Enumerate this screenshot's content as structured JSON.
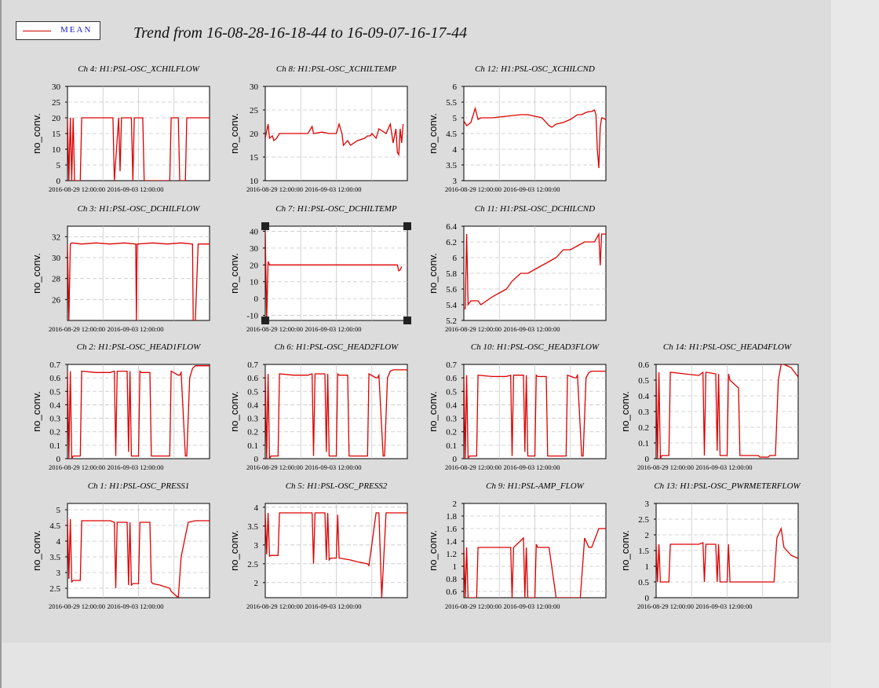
{
  "page": {
    "title": "Trend from 16-08-28-16-18-44 to 16-09-07-16-17-44",
    "legend_label": "MEAN",
    "legend_color": "#d00000",
    "trace_color": "#dd0000"
  },
  "chart_data": [
    {
      "type": "line",
      "title": "Ch 4: H1:PSL-OSC_XCHILFLOW",
      "ylabel": "no_conv.",
      "ylim": [
        0,
        30
      ],
      "yticks": [
        0,
        5,
        10,
        15,
        20,
        25,
        30
      ],
      "xticks": [
        "2016-08-29 12:00:00",
        "2016-09-03 12:00:00"
      ],
      "x": [
        0,
        0.01,
        0.02,
        0.03,
        0.04,
        0.05,
        0.09,
        0.1,
        0.32,
        0.33,
        0.36,
        0.37,
        0.38,
        0.45,
        0.46,
        0.47,
        0.53,
        0.54,
        0.72,
        0.73,
        0.78,
        0.79,
        0.83,
        0.84,
        1
      ],
      "y": [
        20,
        0,
        20,
        0,
        20,
        0,
        0,
        20,
        20,
        0,
        20,
        3,
        20,
        20,
        0,
        20,
        20,
        0,
        0,
        20,
        20,
        0,
        0,
        20,
        20
      ]
    },
    {
      "type": "line",
      "title": "Ch 8: H1:PSL-OSC_XCHILTEMP",
      "ylabel": "no_conv.",
      "ylim": [
        10,
        30
      ],
      "yticks": [
        10,
        15,
        20,
        25,
        30
      ],
      "xticks": [
        "2016-08-29 12:00:00",
        "2016-09-03 12:00:00"
      ],
      "x": [
        0,
        0.02,
        0.03,
        0.05,
        0.06,
        0.08,
        0.1,
        0.2,
        0.3,
        0.33,
        0.34,
        0.4,
        0.45,
        0.5,
        0.52,
        0.54,
        0.55,
        0.58,
        0.6,
        0.65,
        0.7,
        0.72,
        0.74,
        0.75,
        0.78,
        0.8,
        0.85,
        0.88,
        0.9,
        0.92,
        0.93,
        0.94,
        0.95,
        0.96,
        0.97
      ],
      "y": [
        19,
        22,
        19,
        19.5,
        18.5,
        19,
        20,
        20,
        20,
        21.5,
        20,
        20.3,
        20,
        20,
        22,
        20,
        17.5,
        18.5,
        17.5,
        18.5,
        19,
        19.5,
        19.5,
        20,
        19,
        21,
        20,
        22,
        18,
        21,
        16,
        15.5,
        21,
        18,
        22
      ]
    },
    {
      "type": "line",
      "title": "Ch 12: H1:PSL-OSC_XCHILCND",
      "ylabel": "no_conv.",
      "ylim": [
        3,
        6
      ],
      "yticks": [
        3,
        3.5,
        4,
        4.5,
        5,
        5.5,
        6
      ],
      "xticks": [
        "2016-08-29 12:00:00",
        "2016-09-03 12:00:00"
      ],
      "x": [
        0,
        0.02,
        0.05,
        0.08,
        0.1,
        0.12,
        0.15,
        0.2,
        0.3,
        0.4,
        0.45,
        0.5,
        0.55,
        0.6,
        0.62,
        0.65,
        0.7,
        0.75,
        0.8,
        0.83,
        0.85,
        0.88,
        0.9,
        0.92,
        0.93,
        0.94,
        0.95,
        0.96,
        0.97,
        1
      ],
      "y": [
        4.9,
        4.75,
        4.85,
        5.3,
        4.95,
        5.0,
        5.0,
        5.0,
        5.05,
        5.1,
        5.1,
        5.05,
        5.0,
        4.75,
        4.7,
        4.8,
        4.85,
        4.95,
        5.1,
        5.1,
        5.15,
        5.2,
        5.2,
        5.25,
        5.1,
        4.0,
        3.4,
        4.7,
        5.0,
        4.95
      ]
    },
    {
      "type": "line",
      "title": "Ch 3: H1:PSL-OSC_DCHILFLOW",
      "ylabel": "no_conv.",
      "ylim": [
        24,
        33
      ],
      "yticks": [
        26,
        28,
        30,
        32
      ],
      "xticks": [
        "2016-08-29 12:00:00",
        "2016-09-03 12:00:00"
      ],
      "x": [
        0,
        0.01,
        0.02,
        0.03,
        0.1,
        0.2,
        0.3,
        0.4,
        0.48,
        0.485,
        0.49,
        0.6,
        0.7,
        0.8,
        0.88,
        0.885,
        0.9,
        0.92,
        0.93,
        1
      ],
      "y": [
        31.3,
        24,
        31.3,
        31.4,
        31.3,
        31.4,
        31.3,
        31.4,
        31.3,
        24,
        31.3,
        31.4,
        31.3,
        31.4,
        31.3,
        24,
        24,
        31.3,
        31.3,
        31.3
      ]
    },
    {
      "type": "line",
      "title": "Ch 7: H1:PSL-OSC_DCHILTEMP",
      "ylabel": "no_conv.",
      "ylim": [
        -13,
        43
      ],
      "yticks": [
        -10,
        0,
        10,
        20,
        30,
        40
      ],
      "xticks": [
        "2016-08-29 12:00:00",
        "2016-09-03 12:00:00"
      ],
      "x": [
        0,
        0.01,
        0.02,
        0.03,
        0.1,
        0.2,
        0.3,
        0.4,
        0.5,
        0.6,
        0.7,
        0.8,
        0.9,
        0.93,
        0.94,
        0.95,
        0.96
      ],
      "y": [
        40,
        -12,
        22,
        20,
        20,
        20,
        20,
        20,
        20,
        20,
        20,
        20,
        20,
        20,
        16.5,
        17,
        19
      ]
    },
    {
      "type": "line",
      "title": "Ch 11: H1:PSL-OSC_DCHILCND",
      "ylabel": "no_conv.",
      "ylim": [
        5.2,
        6.4
      ],
      "yticks": [
        5.2,
        5.4,
        5.6,
        5.8,
        6,
        6.2,
        6.4
      ],
      "xticks": [
        "2016-08-29 12:00:00",
        "2016-09-03 12:00:00"
      ],
      "x": [
        0,
        0.01,
        0.02,
        0.03,
        0.05,
        0.1,
        0.12,
        0.2,
        0.25,
        0.3,
        0.34,
        0.4,
        0.45,
        0.5,
        0.55,
        0.6,
        0.65,
        0.7,
        0.75,
        0.8,
        0.85,
        0.88,
        0.9,
        0.92,
        0.95,
        0.96,
        0.97,
        1
      ],
      "y": [
        5.35,
        5.35,
        6.3,
        5.4,
        5.45,
        5.45,
        5.4,
        5.5,
        5.55,
        5.6,
        5.7,
        5.8,
        5.8,
        5.85,
        5.9,
        5.95,
        6.0,
        6.1,
        6.1,
        6.15,
        6.2,
        6.2,
        6.2,
        6.2,
        6.3,
        5.9,
        6.3,
        6.3
      ]
    },
    {
      "type": "line",
      "title": "Ch 2: H1:PSL-OSC_HEAD1FLOW",
      "ylabel": "no_conv.",
      "ylim": [
        0,
        0.7
      ],
      "yticks": [
        0,
        0.1,
        0.2,
        0.3,
        0.4,
        0.5,
        0.6,
        0.7
      ],
      "xticks": [
        "2016-08-29 12:00:00",
        "2016-09-03 12:00:00"
      ],
      "x": [
        0,
        0.01,
        0.02,
        0.03,
        0.04,
        0.09,
        0.1,
        0.2,
        0.3,
        0.33,
        0.34,
        0.35,
        0.42,
        0.43,
        0.44,
        0.45,
        0.46,
        0.5,
        0.51,
        0.52,
        0.58,
        0.59,
        0.6,
        0.65,
        0.72,
        0.73,
        0.78,
        0.79,
        0.8,
        0.83,
        0.84,
        0.86,
        0.88,
        0.9,
        1
      ],
      "y": [
        0.65,
        0,
        0.65,
        0,
        0.02,
        0.02,
        0.65,
        0.64,
        0.64,
        0.65,
        0.02,
        0.65,
        0.65,
        0.05,
        0.65,
        0.02,
        0.02,
        0.02,
        0.65,
        0.64,
        0.64,
        0.02,
        0.02,
        0.02,
        0.02,
        0.65,
        0.62,
        0.62,
        0.64,
        0.02,
        0.02,
        0.6,
        0.67,
        0.69,
        0.69
      ]
    },
    {
      "type": "line",
      "title": "Ch 6: H1:PSL-OSC_HEAD2FLOW",
      "ylabel": "no_conv.",
      "ylim": [
        0,
        0.7
      ],
      "yticks": [
        0,
        0.1,
        0.2,
        0.3,
        0.4,
        0.5,
        0.6,
        0.7
      ],
      "xticks": [
        "2016-08-29 12:00:00",
        "2016-09-03 12:00:00"
      ],
      "x": [
        0,
        0.01,
        0.02,
        0.03,
        0.04,
        0.09,
        0.1,
        0.2,
        0.3,
        0.33,
        0.34,
        0.35,
        0.42,
        0.43,
        0.44,
        0.45,
        0.46,
        0.5,
        0.51,
        0.52,
        0.58,
        0.59,
        0.6,
        0.65,
        0.72,
        0.73,
        0.78,
        0.79,
        0.8,
        0.83,
        0.84,
        0.86,
        0.88,
        0.9,
        1
      ],
      "y": [
        0.63,
        0,
        0.63,
        0,
        0.02,
        0.02,
        0.63,
        0.62,
        0.62,
        0.63,
        0.02,
        0.63,
        0.63,
        0.05,
        0.63,
        0.02,
        0.02,
        0.02,
        0.63,
        0.62,
        0.62,
        0.02,
        0.02,
        0.02,
        0.02,
        0.63,
        0.6,
        0.6,
        0.62,
        0.02,
        0.02,
        0.6,
        0.65,
        0.66,
        0.66
      ]
    },
    {
      "type": "line",
      "title": "Ch 10: H1:PSL-OSC_HEAD3FLOW",
      "ylabel": "no_conv.",
      "ylim": [
        0,
        0.7
      ],
      "yticks": [
        0,
        0.1,
        0.2,
        0.3,
        0.4,
        0.5,
        0.6,
        0.7
      ],
      "xticks": [
        "2016-08-29 12:00:00",
        "2016-09-03 12:00:00"
      ],
      "x": [
        0,
        0.01,
        0.02,
        0.03,
        0.04,
        0.09,
        0.1,
        0.2,
        0.3,
        0.33,
        0.34,
        0.35,
        0.42,
        0.43,
        0.44,
        0.45,
        0.46,
        0.5,
        0.51,
        0.52,
        0.58,
        0.59,
        0.6,
        0.65,
        0.72,
        0.73,
        0.78,
        0.79,
        0.8,
        0.83,
        0.84,
        0.86,
        0.88,
        0.9,
        1
      ],
      "y": [
        0.62,
        0,
        0.62,
        0,
        0.02,
        0.02,
        0.62,
        0.61,
        0.61,
        0.62,
        0.02,
        0.62,
        0.62,
        0.05,
        0.62,
        0.02,
        0.02,
        0.02,
        0.62,
        0.61,
        0.61,
        0.02,
        0.02,
        0.02,
        0.02,
        0.62,
        0.6,
        0.6,
        0.62,
        0.02,
        0.02,
        0.6,
        0.64,
        0.65,
        0.65
      ]
    },
    {
      "type": "line",
      "title": "Ch 14: H1:PSL-OSC_HEAD4FLOW",
      "ylabel": "no_conv.",
      "ylim": [
        0,
        0.6
      ],
      "yticks": [
        0,
        0.1,
        0.2,
        0.3,
        0.4,
        0.5,
        0.6
      ],
      "xticks": [
        "2016-08-29 12:00:00",
        "2016-09-03 12:00:00"
      ],
      "x": [
        0,
        0.01,
        0.02,
        0.03,
        0.04,
        0.09,
        0.1,
        0.2,
        0.3,
        0.33,
        0.34,
        0.35,
        0.42,
        0.43,
        0.44,
        0.45,
        0.46,
        0.5,
        0.51,
        0.52,
        0.58,
        0.59,
        0.6,
        0.65,
        0.72,
        0.73,
        0.78,
        0.79,
        0.8,
        0.83,
        0.84,
        0.86,
        0.88,
        0.9,
        0.95,
        1
      ],
      "y": [
        0.55,
        0,
        0.55,
        0,
        0.02,
        0.02,
        0.55,
        0.54,
        0.53,
        0.55,
        0.02,
        0.55,
        0.54,
        0.05,
        0.54,
        0.02,
        0.02,
        0.02,
        0.54,
        0.5,
        0.45,
        0.02,
        0.02,
        0.02,
        0.02,
        0.01,
        0.01,
        0.01,
        0.02,
        0.02,
        0.02,
        0.5,
        0.6,
        0.6,
        0.58,
        0.52
      ]
    },
    {
      "type": "line",
      "title": "Ch 1: H1:PSL-OSC_PRESS1",
      "ylabel": "no_conv.",
      "ylim": [
        2.2,
        5.2
      ],
      "yticks": [
        2.5,
        3,
        3.5,
        4,
        4.5,
        5
      ],
      "xticks": [
        "2016-08-29 12:00:00",
        "2016-09-03 12:00:00"
      ],
      "x": [
        0,
        0.01,
        0.02,
        0.03,
        0.04,
        0.09,
        0.1,
        0.2,
        0.3,
        0.33,
        0.34,
        0.35,
        0.42,
        0.43,
        0.44,
        0.45,
        0.46,
        0.5,
        0.51,
        0.52,
        0.58,
        0.59,
        0.6,
        0.65,
        0.72,
        0.73,
        0.78,
        0.8,
        0.85,
        0.9,
        1
      ],
      "y": [
        4.7,
        2.8,
        4.7,
        2.7,
        2.75,
        2.75,
        4.65,
        4.65,
        4.65,
        4.6,
        2.5,
        4.6,
        4.6,
        2.6,
        4.6,
        2.6,
        2.65,
        2.65,
        4.6,
        4.6,
        4.6,
        2.7,
        2.65,
        2.6,
        2.5,
        2.4,
        2.2,
        3.5,
        4.6,
        4.65,
        4.65
      ]
    },
    {
      "type": "line",
      "title": "Ch 5: H1:PSL-OSC_PRESS2",
      "ylabel": "no_conv.",
      "ylim": [
        1.6,
        4.1
      ],
      "yticks": [
        2,
        2.5,
        3,
        3.5,
        4
      ],
      "xticks": [
        "2016-08-29 12:00:00",
        "2016-09-03 12:00:00"
      ],
      "x": [
        0,
        0.01,
        0.02,
        0.03,
        0.04,
        0.09,
        0.1,
        0.2,
        0.3,
        0.33,
        0.34,
        0.35,
        0.42,
        0.43,
        0.44,
        0.45,
        0.46,
        0.5,
        0.51,
        0.52,
        0.6,
        0.65,
        0.72,
        0.73,
        0.78,
        0.8,
        0.82,
        0.85,
        0.9,
        1
      ],
      "y": [
        3.85,
        2.75,
        3.85,
        2.7,
        2.72,
        2.72,
        3.85,
        3.85,
        3.85,
        3.85,
        2.5,
        3.85,
        3.85,
        2.6,
        3.85,
        2.6,
        2.65,
        2.65,
        3.8,
        2.65,
        2.6,
        2.55,
        2.5,
        2.45,
        3.85,
        3.85,
        1.6,
        3.85,
        3.85,
        3.85
      ]
    },
    {
      "type": "line",
      "title": "Ch 9: H1:PSL-AMP_FLOW",
      "ylabel": "no_conv.",
      "ylim": [
        0.5,
        2
      ],
      "yticks": [
        0.6,
        0.8,
        1,
        1.2,
        1.4,
        1.6,
        1.8,
        2
      ],
      "xticks": [
        "2016-08-29 12:00:00",
        "2016-09-03 12:00:00"
      ],
      "x": [
        0,
        0.01,
        0.02,
        0.03,
        0.04,
        0.09,
        0.1,
        0.2,
        0.3,
        0.33,
        0.34,
        0.35,
        0.42,
        0.43,
        0.44,
        0.45,
        0.46,
        0.5,
        0.51,
        0.52,
        0.6,
        0.65,
        0.72,
        0.73,
        0.78,
        0.8,
        0.82,
        0.85,
        0.88,
        0.9,
        0.95,
        1
      ],
      "y": [
        1.3,
        0.5,
        1.3,
        0.5,
        0.5,
        0.5,
        1.3,
        1.3,
        1.3,
        1.3,
        0.5,
        1.3,
        1.45,
        0.5,
        1.3,
        0.5,
        0.5,
        0.5,
        1.35,
        1.3,
        1.3,
        0.5,
        0.5,
        0.5,
        0.5,
        0.5,
        0.5,
        1.45,
        1.3,
        1.3,
        1.6,
        1.6
      ]
    },
    {
      "type": "line",
      "title": "Ch 13: H1:PSL-OSC_PWRMETERFLOW",
      "ylabel": "no_conv.",
      "ylim": [
        0,
        3
      ],
      "yticks": [
        0,
        0.5,
        1,
        1.5,
        2,
        2.5,
        3
      ],
      "xticks": [
        "2016-08-29 12:00:00",
        "2016-09-03 12:00:00"
      ],
      "x": [
        0,
        0.01,
        0.02,
        0.03,
        0.04,
        0.09,
        0.1,
        0.2,
        0.3,
        0.33,
        0.34,
        0.35,
        0.42,
        0.43,
        0.44,
        0.45,
        0.46,
        0.5,
        0.51,
        0.52,
        0.6,
        0.65,
        0.72,
        0.73,
        0.78,
        0.8,
        0.83,
        0.85,
        0.88,
        0.9,
        0.95,
        1
      ],
      "y": [
        1.7,
        0.5,
        1.7,
        0.5,
        0.5,
        0.5,
        1.7,
        1.7,
        1.7,
        1.75,
        0.5,
        1.7,
        1.7,
        0.5,
        1.7,
        0.5,
        0.5,
        0.5,
        1.7,
        0.5,
        0.5,
        0.5,
        0.5,
        0.5,
        0.5,
        0.5,
        0.5,
        1.9,
        2.2,
        1.6,
        1.35,
        1.25
      ]
    }
  ]
}
